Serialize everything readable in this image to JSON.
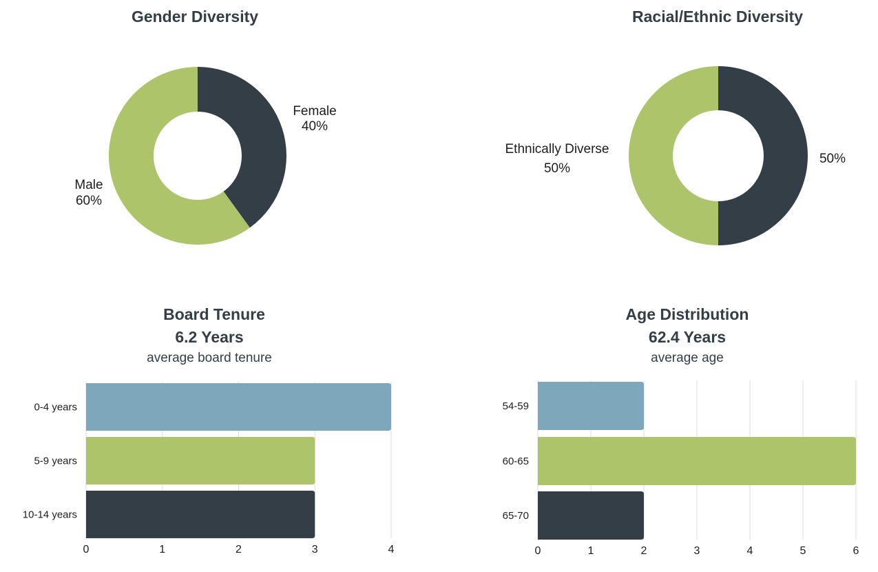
{
  "colors": {
    "dark": "#343e47",
    "green": "#adc46b",
    "blue": "#7fa7bc",
    "grid": "#dddddd"
  },
  "chart_data": [
    {
      "type": "pie",
      "title": "Gender Diversity",
      "slices": [
        {
          "label": "Female",
          "value": 40,
          "display": "40%",
          "color": "#343e47"
        },
        {
          "label": "Male",
          "value": 60,
          "display": "60%",
          "color": "#adc46b"
        }
      ]
    },
    {
      "type": "pie",
      "title": "Racial/Ethnic Diversity",
      "slices": [
        {
          "label": "",
          "value": 50,
          "display": "50%",
          "color": "#343e47"
        },
        {
          "label": "Ethnically Diverse",
          "value": 50,
          "display": "50%",
          "color": "#adc46b"
        }
      ]
    },
    {
      "type": "bar",
      "orientation": "horizontal",
      "title": "Board Tenure",
      "subtitle": "6.2 Years",
      "caption": "average board tenure",
      "categories": [
        "0-4 years",
        "5-9 years",
        "10-14 years"
      ],
      "values": [
        4,
        3,
        3
      ],
      "colors": [
        "#7fa7bc",
        "#adc46b",
        "#343e47"
      ],
      "xlim": [
        0,
        4
      ],
      "ticks": [
        0,
        1,
        2,
        3,
        4
      ],
      "grid": true
    },
    {
      "type": "bar",
      "orientation": "horizontal",
      "title": "Age Distribution",
      "subtitle": "62.4 Years",
      "caption": "average age",
      "categories": [
        "54-59",
        "60-65",
        "65-70"
      ],
      "values": [
        2,
        6,
        2
      ],
      "colors": [
        "#7fa7bc",
        "#adc46b",
        "#343e47"
      ],
      "xlim": [
        0,
        6
      ],
      "ticks": [
        0,
        1,
        2,
        3,
        4,
        5,
        6
      ],
      "grid": true
    }
  ]
}
